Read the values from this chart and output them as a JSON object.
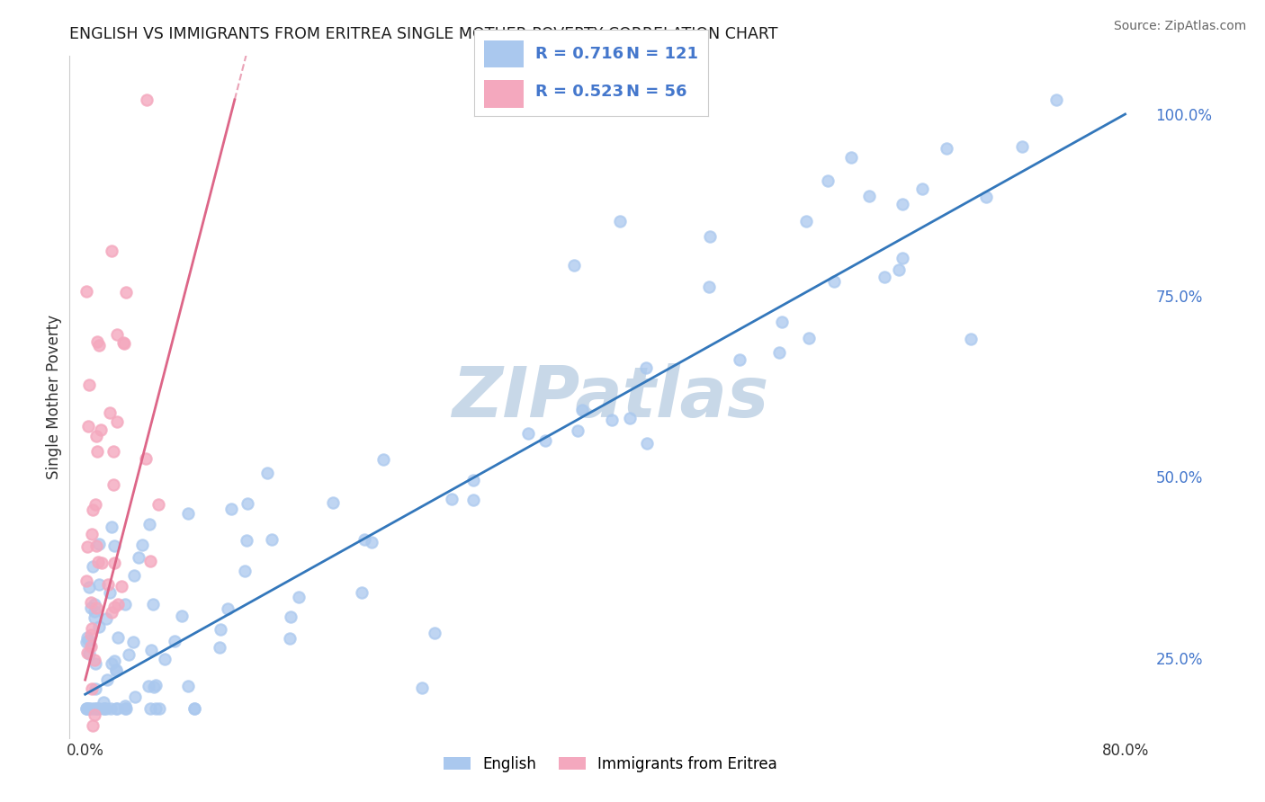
{
  "title": "ENGLISH VS IMMIGRANTS FROM ERITREA SINGLE MOTHER POVERTY CORRELATION CHART",
  "source": "Source: ZipAtlas.com",
  "ylabel": "Single Mother Poverty",
  "right_yticks": [
    "25.0%",
    "50.0%",
    "75.0%",
    "100.0%"
  ],
  "right_ytick_vals": [
    0.25,
    0.5,
    0.75,
    1.0
  ],
  "legend_english_R": "0.716",
  "legend_english_N": "121",
  "legend_eritrea_R": "0.523",
  "legend_eritrea_N": "56",
  "english_color": "#aac8ee",
  "eritrea_color": "#f4a8be",
  "english_line_color": "#3377bb",
  "eritrea_line_color": "#dd6688",
  "legend_R_color": "#4477cc",
  "legend_N_color": "#4477cc",
  "watermark_color": "#c8d8e8",
  "watermark": "ZIPatlas",
  "background_color": "#ffffff",
  "xlim_data": [
    0.0,
    0.8
  ],
  "ylim_data": [
    0.15,
    1.05
  ],
  "english_line_x0": 0.0,
  "english_line_y0": 0.2,
  "english_line_x1": 0.8,
  "english_line_y1": 1.0,
  "eritrea_line_x0": 0.0,
  "eritrea_line_y0": 0.22,
  "eritrea_line_x1": 0.115,
  "eritrea_line_y1": 1.02,
  "grid_color": "#cccccc",
  "axis_color": "#cccccc"
}
